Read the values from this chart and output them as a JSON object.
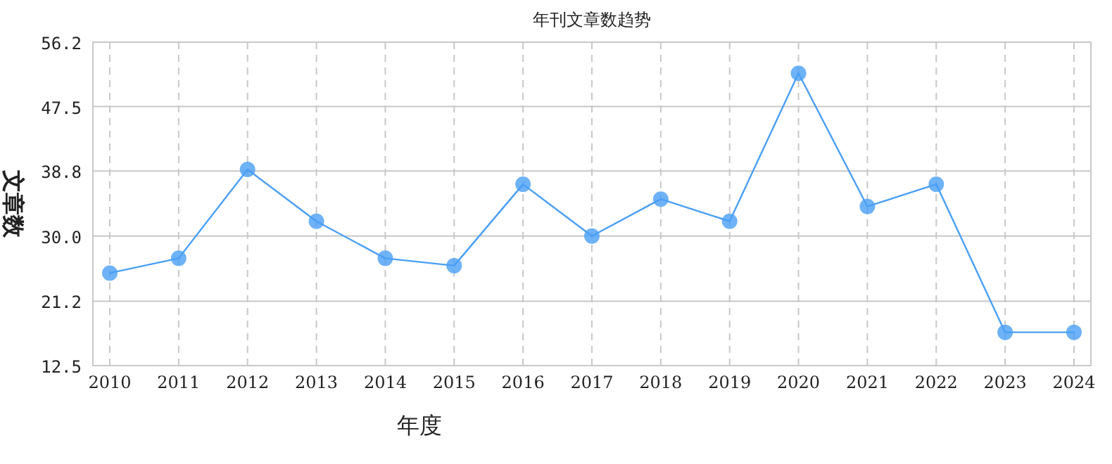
{
  "chart_data": {
    "type": "line",
    "title": "年刊文章数趋势",
    "xlabel": "年度",
    "ylabel": "文章数",
    "categories": [
      "2010",
      "2011",
      "2012",
      "2013",
      "2014",
      "2015",
      "2016",
      "2017",
      "2018",
      "2019",
      "2020",
      "2021",
      "2022",
      "2023",
      "2024"
    ],
    "series": [
      {
        "color": "#4a9ff5",
        "values": [
          25,
          27,
          39,
          32,
          27,
          26,
          37,
          30,
          35,
          32,
          52,
          34,
          37,
          17,
          17
        ]
      }
    ],
    "ylim": [
      12.5,
      56.2
    ],
    "yticks": [
      12.5,
      21.2,
      {
        "value": 30,
        "label": "30.0"
      },
      38.8,
      47.5,
      56.2
    ],
    "grid": true,
    "marker": "circle",
    "line_style": "solid"
  }
}
